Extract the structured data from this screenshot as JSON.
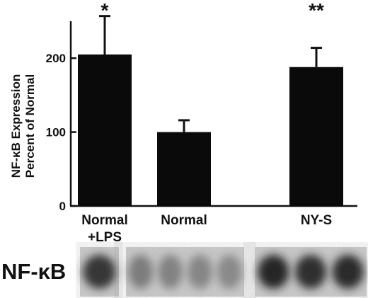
{
  "chart_data": {
    "type": "bar",
    "ylabel_line1": "NF-κB Expression",
    "ylabel_line2": "Percent of Normal",
    "ylim": [
      0,
      250
    ],
    "yticks": [
      0,
      100,
      200
    ],
    "categories": [
      {
        "label_lines": [
          "Normal",
          "+LPS"
        ],
        "value": 205,
        "error": 52,
        "significance": "*"
      },
      {
        "label_lines": [
          "Normal",
          ""
        ],
        "value": 100,
        "error": 16,
        "significance": ""
      },
      {
        "label_lines": [
          "NY-S",
          ""
        ],
        "value": 188,
        "error": 26,
        "significance": "**"
      }
    ],
    "grid": false,
    "bar_color": "#0a0a0a"
  },
  "blot": {
    "label": "NF-κB",
    "lane_groups": [
      {
        "group": "Normal+LPS",
        "intensities": [
          0.85
        ]
      },
      {
        "group": "Normal",
        "intensities": [
          0.45,
          0.42,
          0.4,
          0.38
        ]
      },
      {
        "group": "NY-S",
        "intensities": [
          0.92,
          0.88,
          0.9
        ]
      }
    ]
  }
}
